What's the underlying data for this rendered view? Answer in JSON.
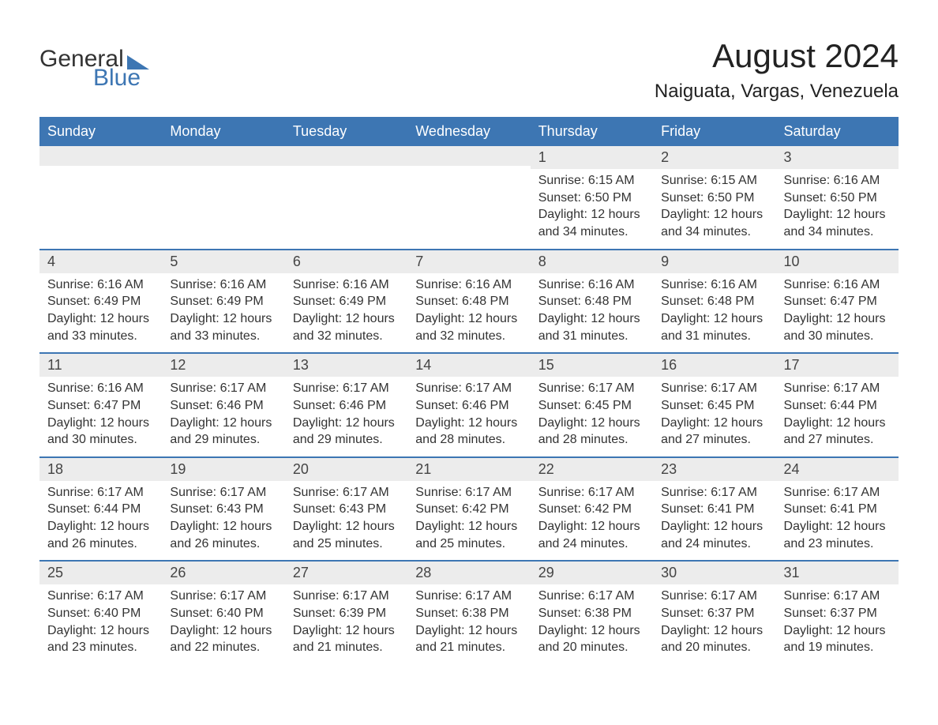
{
  "logo": {
    "word1": "General",
    "word2": "Blue"
  },
  "title": "August 2024",
  "location": "Naiguata, Vargas, Venezuela",
  "colors": {
    "header_bg": "#3d76b3",
    "header_text": "#ffffff",
    "daynum_bg": "#ececec",
    "row_border": "#3d76b3",
    "text": "#333333",
    "page_bg": "#ffffff"
  },
  "day_headers": [
    "Sunday",
    "Monday",
    "Tuesday",
    "Wednesday",
    "Thursday",
    "Friday",
    "Saturday"
  ],
  "weeks": [
    [
      null,
      null,
      null,
      null,
      {
        "num": "1",
        "sunrise": "6:15 AM",
        "sunset": "6:50 PM",
        "daylight": "12 hours and 34 minutes."
      },
      {
        "num": "2",
        "sunrise": "6:15 AM",
        "sunset": "6:50 PM",
        "daylight": "12 hours and 34 minutes."
      },
      {
        "num": "3",
        "sunrise": "6:16 AM",
        "sunset": "6:50 PM",
        "daylight": "12 hours and 34 minutes."
      }
    ],
    [
      {
        "num": "4",
        "sunrise": "6:16 AM",
        "sunset": "6:49 PM",
        "daylight": "12 hours and 33 minutes."
      },
      {
        "num": "5",
        "sunrise": "6:16 AM",
        "sunset": "6:49 PM",
        "daylight": "12 hours and 33 minutes."
      },
      {
        "num": "6",
        "sunrise": "6:16 AM",
        "sunset": "6:49 PM",
        "daylight": "12 hours and 32 minutes."
      },
      {
        "num": "7",
        "sunrise": "6:16 AM",
        "sunset": "6:48 PM",
        "daylight": "12 hours and 32 minutes."
      },
      {
        "num": "8",
        "sunrise": "6:16 AM",
        "sunset": "6:48 PM",
        "daylight": "12 hours and 31 minutes."
      },
      {
        "num": "9",
        "sunrise": "6:16 AM",
        "sunset": "6:48 PM",
        "daylight": "12 hours and 31 minutes."
      },
      {
        "num": "10",
        "sunrise": "6:16 AM",
        "sunset": "6:47 PM",
        "daylight": "12 hours and 30 minutes."
      }
    ],
    [
      {
        "num": "11",
        "sunrise": "6:16 AM",
        "sunset": "6:47 PM",
        "daylight": "12 hours and 30 minutes."
      },
      {
        "num": "12",
        "sunrise": "6:17 AM",
        "sunset": "6:46 PM",
        "daylight": "12 hours and 29 minutes."
      },
      {
        "num": "13",
        "sunrise": "6:17 AM",
        "sunset": "6:46 PM",
        "daylight": "12 hours and 29 minutes."
      },
      {
        "num": "14",
        "sunrise": "6:17 AM",
        "sunset": "6:46 PM",
        "daylight": "12 hours and 28 minutes."
      },
      {
        "num": "15",
        "sunrise": "6:17 AM",
        "sunset": "6:45 PM",
        "daylight": "12 hours and 28 minutes."
      },
      {
        "num": "16",
        "sunrise": "6:17 AM",
        "sunset": "6:45 PM",
        "daylight": "12 hours and 27 minutes."
      },
      {
        "num": "17",
        "sunrise": "6:17 AM",
        "sunset": "6:44 PM",
        "daylight": "12 hours and 27 minutes."
      }
    ],
    [
      {
        "num": "18",
        "sunrise": "6:17 AM",
        "sunset": "6:44 PM",
        "daylight": "12 hours and 26 minutes."
      },
      {
        "num": "19",
        "sunrise": "6:17 AM",
        "sunset": "6:43 PM",
        "daylight": "12 hours and 26 minutes."
      },
      {
        "num": "20",
        "sunrise": "6:17 AM",
        "sunset": "6:43 PM",
        "daylight": "12 hours and 25 minutes."
      },
      {
        "num": "21",
        "sunrise": "6:17 AM",
        "sunset": "6:42 PM",
        "daylight": "12 hours and 25 minutes."
      },
      {
        "num": "22",
        "sunrise": "6:17 AM",
        "sunset": "6:42 PM",
        "daylight": "12 hours and 24 minutes."
      },
      {
        "num": "23",
        "sunrise": "6:17 AM",
        "sunset": "6:41 PM",
        "daylight": "12 hours and 24 minutes."
      },
      {
        "num": "24",
        "sunrise": "6:17 AM",
        "sunset": "6:41 PM",
        "daylight": "12 hours and 23 minutes."
      }
    ],
    [
      {
        "num": "25",
        "sunrise": "6:17 AM",
        "sunset": "6:40 PM",
        "daylight": "12 hours and 23 minutes."
      },
      {
        "num": "26",
        "sunrise": "6:17 AM",
        "sunset": "6:40 PM",
        "daylight": "12 hours and 22 minutes."
      },
      {
        "num": "27",
        "sunrise": "6:17 AM",
        "sunset": "6:39 PM",
        "daylight": "12 hours and 21 minutes."
      },
      {
        "num": "28",
        "sunrise": "6:17 AM",
        "sunset": "6:38 PM",
        "daylight": "12 hours and 21 minutes."
      },
      {
        "num": "29",
        "sunrise": "6:17 AM",
        "sunset": "6:38 PM",
        "daylight": "12 hours and 20 minutes."
      },
      {
        "num": "30",
        "sunrise": "6:17 AM",
        "sunset": "6:37 PM",
        "daylight": "12 hours and 20 minutes."
      },
      {
        "num": "31",
        "sunrise": "6:17 AM",
        "sunset": "6:37 PM",
        "daylight": "12 hours and 19 minutes."
      }
    ]
  ],
  "labels": {
    "sunrise": "Sunrise:",
    "sunset": "Sunset:",
    "daylight": "Daylight:"
  }
}
